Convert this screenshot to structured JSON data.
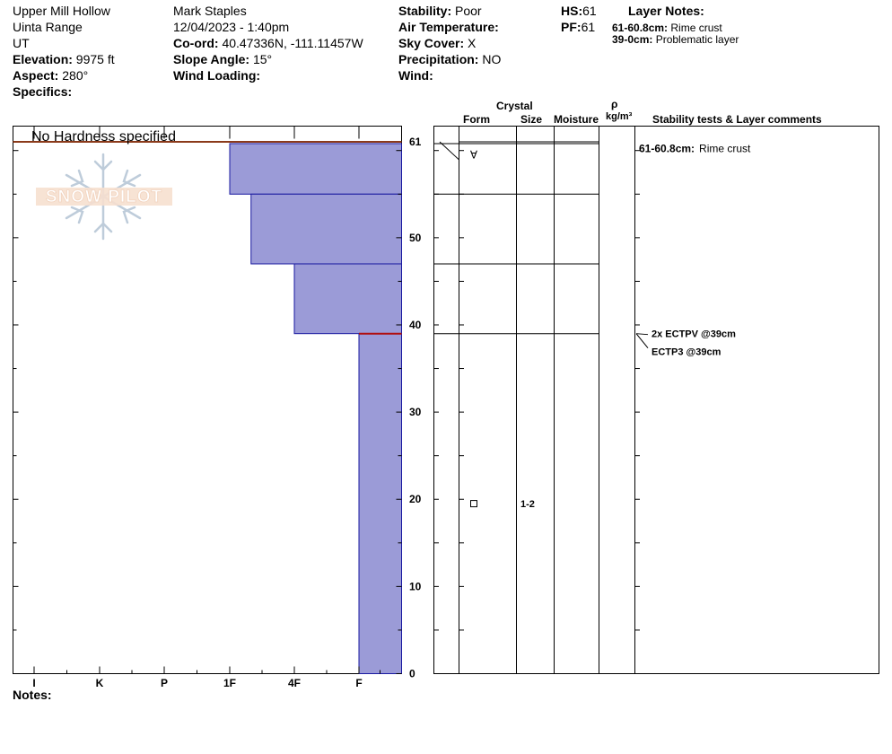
{
  "header": {
    "location": "Upper Mill Hollow",
    "range": "Uinta Range",
    "state": "UT",
    "elevation_label": "Elevation:",
    "elevation": "9975 ft",
    "aspect_label": "Aspect:",
    "aspect": "280°",
    "specifics_label": "Specifics:",
    "observer": "Mark Staples",
    "datetime": "12/04/2023 - 1:40pm",
    "coord_label": "Co-ord:",
    "coord": "40.47336N, -111.11457W",
    "slope_label": "Slope Angle:",
    "slope": "15°",
    "wind_loading_label": "Wind Loading:",
    "stability_label": "Stability:",
    "stability": "Poor",
    "air_temp_label": "Air Temperature:",
    "sky_label": "Sky Cover:",
    "sky": "X",
    "precip_label": "Precipitation:",
    "precip": "NO",
    "wind_label": "Wind:",
    "hs_label": "HS:",
    "hs": "61",
    "pf_label": "PF:",
    "pf": "61",
    "layer_notes_title": "Layer Notes:",
    "layer_notes": [
      {
        "range": "61-60.8cm:",
        "text": "Rime crust"
      },
      {
        "range": "39-0cm:",
        "text": "Problematic layer"
      }
    ]
  },
  "logo_text": "SNOW PILOT",
  "notes_label": "Notes:",
  "columns": {
    "crystal": "Crystal",
    "form": "Form",
    "size": "Size",
    "moisture": "Moisture",
    "rho": "ρ",
    "density_unit": "kg/m³",
    "stability": "Stability tests & Layer comments"
  },
  "chart_data": {
    "type": "bar",
    "title": "No Hardness specified",
    "orientation": "horizontal-profile",
    "depth_range": [
      0,
      61
    ],
    "depth_ticks": [
      0,
      10,
      20,
      30,
      40,
      50,
      61
    ],
    "hardness_scale": [
      "I",
      "K",
      "P",
      "1F",
      "4F",
      "F"
    ],
    "layers": [
      {
        "top": 61,
        "bottom": 60.8,
        "hardness_index": 6,
        "color": "#8b3a1a"
      },
      {
        "top": 60.8,
        "bottom": 55,
        "hardness_index": 3.0
      },
      {
        "top": 55,
        "bottom": 47,
        "hardness_index": 3.33
      },
      {
        "top": 47,
        "bottom": 39,
        "hardness_index": 4.0
      },
      {
        "top": 39,
        "bottom": 0,
        "hardness_index": 5.0
      }
    ],
    "problem_layer_depth": 39,
    "layer_lines": [
      61,
      60.8,
      55,
      47,
      39
    ],
    "crystals": [
      {
        "depth": 59.5,
        "form": "∀",
        "size": ""
      },
      {
        "depth": 19.5,
        "form": "□",
        "size": "1-2"
      }
    ],
    "comments": [
      {
        "depth": 59.9,
        "bold": "61-60.8cm:",
        "text": "Rime crust"
      }
    ],
    "stability_tests": [
      {
        "depth": 39,
        "text": "2x ECTPV @39cm",
        "offset": 0
      },
      {
        "depth": 39,
        "text": "ECTP3 @39cm",
        "offset": 20
      }
    ],
    "colors": {
      "bar": "#9b9bd7",
      "bar_edge": "#1a1aa0",
      "problem": "#b01010",
      "top": "#8b3a1a"
    }
  }
}
